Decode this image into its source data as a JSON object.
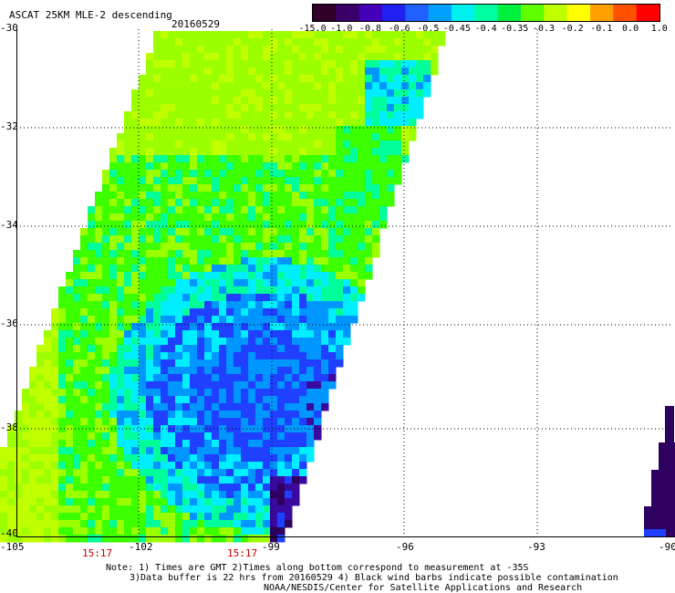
{
  "header": {
    "title": "ASCAT 25KM MLE-2 descending",
    "date": "20160529"
  },
  "colorbar": {
    "labels": [
      "-15.0",
      "-1.0",
      "-0.8",
      "-0.6",
      "-0.5",
      "-0.45",
      "-0.4",
      "-0.35",
      "-0.3",
      "-0.2",
      "-0.1",
      "0.0",
      "1.0"
    ],
    "colors": [
      "#300028",
      "#3a0068",
      "#4400b8",
      "#2020f0",
      "#2060ff",
      "#00a0ff",
      "#00f0f0",
      "#00ffa0",
      "#00f040",
      "#60ff00",
      "#c0ff00",
      "#ffff00",
      "#ffa000",
      "#ff5000",
      "#ff0000"
    ]
  },
  "axes": {
    "lat_labels": [
      "-30",
      "-32",
      "-34",
      "-36",
      "-38",
      "-40"
    ],
    "lon_labels": [
      "-105",
      "-102",
      "-99",
      "-96",
      "-93",
      "-90"
    ],
    "time_labels": [
      "15:17",
      "15:17"
    ]
  },
  "notes": {
    "line1": "Note: 1) Times are GMT 2)Times along bottom correspond to measurement at -35S",
    "line2": "3)Data buffer is 22 hrs from 20160529 4) Black wind barbs indicate possible contamination",
    "line3": "NOAA/NESDIS/Center for Satellite Applications and Research"
  }
}
